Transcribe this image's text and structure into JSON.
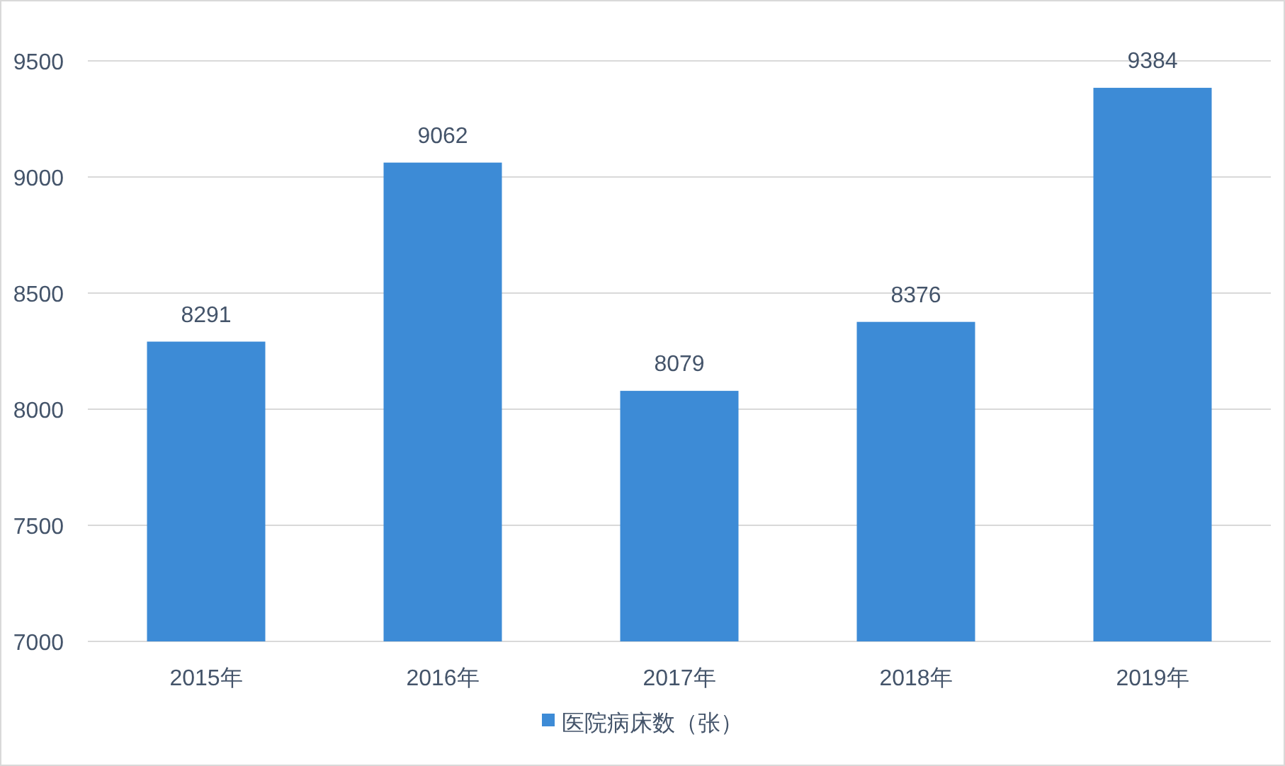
{
  "chart_data": {
    "type": "bar",
    "categories": [
      "2015年",
      "2016年",
      "2017年",
      "2018年",
      "2019年"
    ],
    "series": [
      {
        "name": "医院病床数（张）",
        "color": "#3d8bd6",
        "values": [
          8291,
          9062,
          8079,
          8376,
          9384
        ]
      }
    ],
    "ylim": [
      7000,
      9500
    ],
    "yticks": [
      7000,
      7500,
      8000,
      8500,
      9000,
      9500
    ],
    "grid": "y",
    "data_labels": true,
    "legend": "bottom"
  }
}
